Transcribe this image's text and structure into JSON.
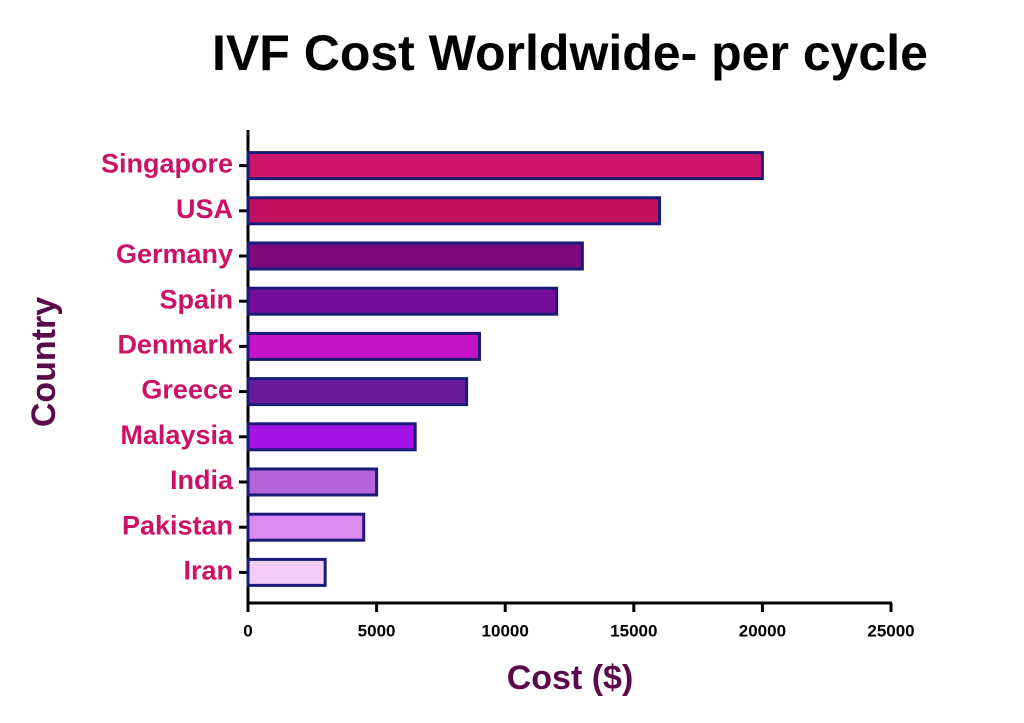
{
  "chart_data": {
    "type": "bar",
    "orientation": "horizontal",
    "title": "IVF Cost Worldwide- per cycle",
    "x_label": "Cost ($)",
    "y_label": "Country",
    "categories": [
      "Singapore",
      "USA",
      "Germany",
      "Spain",
      "Denmark",
      "Greece",
      "Malaysia",
      "India",
      "Pakistan",
      "Iran"
    ],
    "values": [
      20000,
      16000,
      13000,
      12000,
      9000,
      8500,
      6500,
      5000,
      4500,
      3000
    ],
    "colors": [
      "#d0146a",
      "#c0105e",
      "#7c0a7c",
      "#760c9c",
      "#c412c4",
      "#6a1a9c",
      "#a414e4",
      "#b464d8",
      "#dc8cf0",
      "#f2ccf4"
    ],
    "edge_color": "#1a1a78",
    "xlim": [
      0,
      25000
    ],
    "xticks": [
      0,
      5000,
      10000,
      15000,
      20000,
      25000
    ],
    "grid": false
  }
}
